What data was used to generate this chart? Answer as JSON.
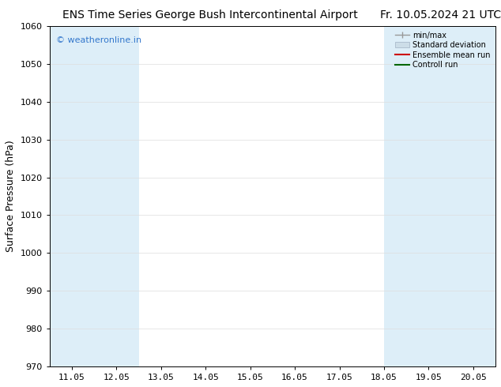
{
  "title": "ENS Time Series George Bush Intercontinental Airport",
  "date_label": "Fr. 10.05.2024 21 UTC",
  "ylabel": "Surface Pressure (hPa)",
  "ylim": [
    970,
    1060
  ],
  "yticks": [
    970,
    980,
    990,
    1000,
    1010,
    1020,
    1030,
    1040,
    1050,
    1060
  ],
  "xtick_labels": [
    "11.05",
    "12.05",
    "13.05",
    "14.05",
    "15.05",
    "16.05",
    "17.05",
    "18.05",
    "19.05",
    "20.05"
  ],
  "xtick_positions": [
    0,
    1,
    2,
    3,
    4,
    5,
    6,
    7,
    8,
    9
  ],
  "xlim": [
    -0.5,
    9.5
  ],
  "shaded_bands": [
    {
      "x_start": -0.5,
      "x_end": 0.5,
      "color": "#ddeef8"
    },
    {
      "x_start": 0.5,
      "x_end": 1.5,
      "color": "#ddeef8"
    },
    {
      "x_start": 7.0,
      "x_end": 7.5,
      "color": "#ddeef8"
    },
    {
      "x_start": 7.5,
      "x_end": 8.5,
      "color": "#ddeef8"
    },
    {
      "x_start": 8.5,
      "x_end": 9.5,
      "color": "#ddeef8"
    }
  ],
  "watermark_text": "© weatheronline.in",
  "watermark_color": "#3377cc",
  "legend_entries": [
    {
      "label": "min/max",
      "color": "#999999",
      "style": "minmax"
    },
    {
      "label": "Standard deviation",
      "color": "#bbccdd",
      "style": "stdev"
    },
    {
      "label": "Ensemble mean run",
      "color": "#cc0000",
      "style": "line"
    },
    {
      "label": "Controll run",
      "color": "#006600",
      "style": "line"
    }
  ],
  "bg_color": "#ffffff",
  "title_fontsize": 10,
  "axis_fontsize": 9,
  "tick_fontsize": 8
}
